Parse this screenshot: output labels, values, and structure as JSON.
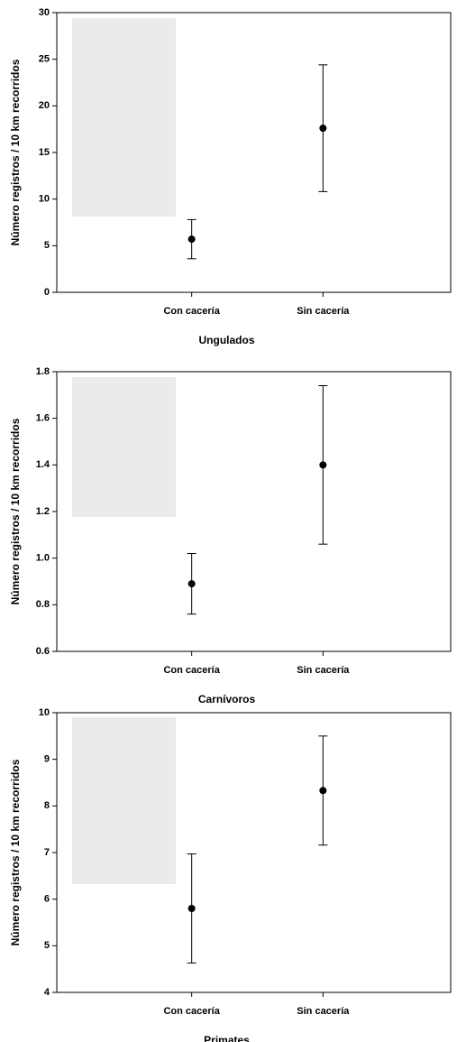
{
  "chart_data": [
    {
      "type": "errorbar",
      "xlabel": "Ungulados",
      "ylabel": "Número registros / 10 km recorridos",
      "categories": [
        "Con cacería",
        "Sin cacería"
      ],
      "values": [
        5.7,
        17.6
      ],
      "errors": [
        2.1,
        6.8
      ],
      "ylim": [
        0,
        30
      ],
      "yticks": [
        0,
        5,
        10,
        15,
        20,
        25,
        30
      ],
      "color": "#000000"
    },
    {
      "type": "errorbar",
      "xlabel": "Carnívoros",
      "ylabel": "Número registros / 10 km recorridos",
      "categories": [
        "Con cacería",
        "Sin cacería"
      ],
      "values": [
        0.89,
        1.4
      ],
      "errors": [
        0.13,
        0.34
      ],
      "ylim": [
        0.6,
        1.8
      ],
      "yticks": [
        0.6,
        0.8,
        {
          "value": 1,
          "label": "1.0"
        },
        1.2,
        1.4,
        1.6,
        1.8
      ],
      "color": "#000000"
    },
    {
      "type": "errorbar",
      "xlabel": "Primates",
      "ylabel": "Número registros / 10 km recorridos",
      "categories": [
        "Con cacería",
        "Sin cacería"
      ],
      "values": [
        5.8,
        8.33
      ],
      "errors": [
        1.17,
        1.17
      ],
      "ylim": [
        4,
        10
      ],
      "yticks": [
        4,
        5,
        6,
        7,
        8,
        9,
        10
      ],
      "color": "#000000"
    }
  ]
}
